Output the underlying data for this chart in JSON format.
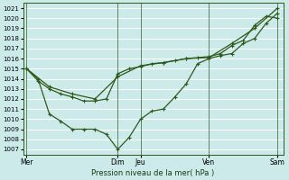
{
  "xlabel": "Pression niveau de la mer( hPa )",
  "bg_color": "#cceaea",
  "grid_color": "#ffffff",
  "line_color": "#2d5a1b",
  "ylim": [
    1006.5,
    1021.5
  ],
  "yticks": [
    1007,
    1008,
    1009,
    1010,
    1011,
    1012,
    1013,
    1014,
    1015,
    1016,
    1017,
    1018,
    1019,
    1020,
    1021
  ],
  "xtick_labels": [
    "Mer",
    "",
    "Dim",
    "Jeu",
    "",
    "Ven",
    "",
    "Sam"
  ],
  "xtick_positions": [
    0,
    4,
    8,
    10,
    13,
    16,
    19,
    22
  ],
  "vline_positions": [
    0,
    8,
    10,
    16,
    22
  ],
  "xlim": [
    -0.3,
    22.5
  ],
  "series1_x": [
    0,
    1,
    2,
    3,
    4,
    5,
    6,
    7,
    8,
    9,
    10,
    11,
    12,
    13,
    14,
    15,
    16,
    17,
    18,
    19,
    20,
    21,
    22
  ],
  "series1_y": [
    1015.0,
    1013.8,
    1013.0,
    1012.5,
    1012.2,
    1011.8,
    1011.8,
    1012.0,
    1014.5,
    1015.0,
    1015.2,
    1015.5,
    1015.6,
    1015.8,
    1016.0,
    1016.1,
    1016.2,
    1016.5,
    1017.3,
    1017.8,
    1019.3,
    1020.2,
    1020.0
  ],
  "series2_x": [
    0,
    1,
    2,
    3,
    4,
    5,
    6,
    7,
    8,
    9,
    10,
    11,
    12,
    13,
    14,
    15,
    16,
    17,
    18,
    19,
    20,
    21,
    22
  ],
  "series2_y": [
    1015.0,
    1014.0,
    1010.5,
    1009.8,
    1009.0,
    1009.0,
    1009.0,
    1008.5,
    1007.0,
    1008.2,
    1010.0,
    1010.8,
    1011.0,
    1012.2,
    1013.5,
    1015.5,
    1016.0,
    1016.3,
    1016.5,
    1017.5,
    1018.0,
    1019.5,
    1020.5
  ],
  "series3_x": [
    0,
    2,
    4,
    6,
    8,
    10,
    12,
    14,
    16,
    18,
    20,
    22
  ],
  "series3_y": [
    1015.0,
    1013.2,
    1012.5,
    1012.0,
    1014.2,
    1015.3,
    1015.6,
    1016.0,
    1016.1,
    1017.5,
    1019.0,
    1021.0
  ]
}
